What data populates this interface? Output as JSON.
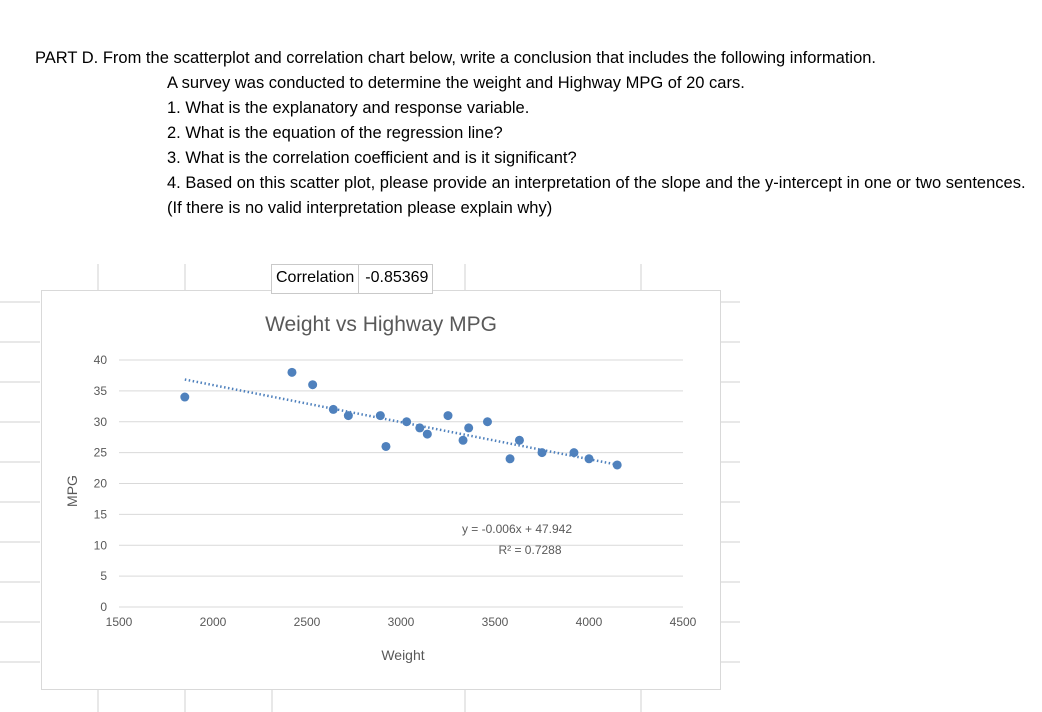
{
  "question": {
    "heading": "PART D. From the scatterplot and correlation chart below, write a conclusion that includes the following information.",
    "lines": [
      "A survey was conducted to determine the weight and Highway MPG of 20 cars.",
      "1. What is the explanatory and response variable.",
      "2. What is the equation of the regression line?",
      "3. What is the correlation coefficient and is it significant?",
      "4. Based on this scatter plot, please provide an interpretation of the slope and the y-intercept in one or two sentences. (If there is no valid interpretation please explain why)"
    ]
  },
  "correlation": {
    "label": "Correlation",
    "value": "-0.85369"
  },
  "chart_data": {
    "type": "scatter",
    "title": "Weight vs Highway MPG",
    "xlabel": "Weight",
    "ylabel": "MPG",
    "xlim": [
      1500,
      4500
    ],
    "ylim": [
      0,
      40
    ],
    "xticks": [
      1500,
      2000,
      2500,
      3000,
      3500,
      4000,
      4500
    ],
    "yticks": [
      0,
      5,
      10,
      15,
      20,
      25,
      30,
      35,
      40
    ],
    "grid": "horizontal",
    "points": [
      {
        "x": 1850,
        "y": 34
      },
      {
        "x": 2420,
        "y": 38
      },
      {
        "x": 2530,
        "y": 36
      },
      {
        "x": 2640,
        "y": 32
      },
      {
        "x": 2720,
        "y": 31
      },
      {
        "x": 2890,
        "y": 31
      },
      {
        "x": 2920,
        "y": 26
      },
      {
        "x": 3030,
        "y": 30
      },
      {
        "x": 3100,
        "y": 29
      },
      {
        "x": 3140,
        "y": 28
      },
      {
        "x": 3250,
        "y": 31
      },
      {
        "x": 3330,
        "y": 27
      },
      {
        "x": 3360,
        "y": 29
      },
      {
        "x": 3460,
        "y": 30
      },
      {
        "x": 3580,
        "y": 24
      },
      {
        "x": 3630,
        "y": 27
      },
      {
        "x": 3750,
        "y": 25
      },
      {
        "x": 3920,
        "y": 25
      },
      {
        "x": 4000,
        "y": 24
      },
      {
        "x": 4150,
        "y": 23
      }
    ],
    "trendline": {
      "slope": -0.006,
      "intercept": 47.942,
      "x_range": [
        1850,
        4150
      ]
    },
    "annotations": {
      "equation": "y = -0.006x + 47.942",
      "r_squared": "R² = 0.7288"
    },
    "colors": {
      "points": "#4f81bd",
      "trendline": "#4f81bd",
      "grid": "#d9d9d9"
    }
  }
}
